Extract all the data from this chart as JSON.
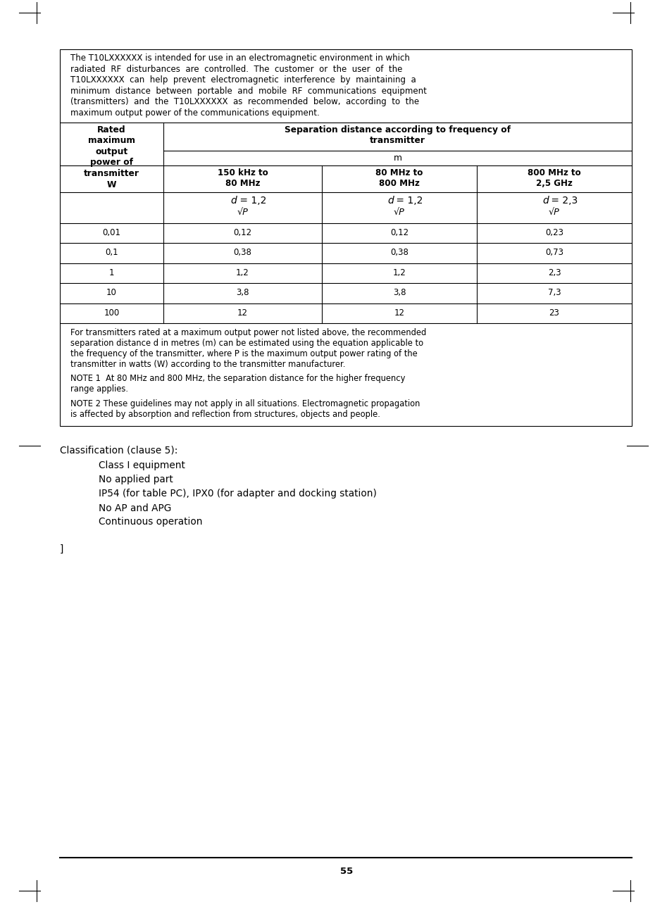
{
  "page_width": 9.47,
  "page_height": 13.08,
  "bg_color": "#ffffff",
  "page_number": "55",
  "intro_lines": [
    "The T10LXXXXXX is intended for use in an electromagnetic environment in which",
    "radiated  RF  disturbances  are  controlled.  The  customer  or  the  user  of  the",
    "T10LXXXXXX  can  help  prevent  electromagnetic  interference  by  maintaining  a",
    "minimum  distance  between  portable  and  mobile  RF  communications  equipment",
    "(transmitters)  and  the  T10LXXXXXX  as  recommended  below,  according  to  the",
    "maximum output power of the communications equipment."
  ],
  "col1_header_lines": [
    "Rated",
    "maximum",
    "output",
    "power of",
    "transmitter",
    "W"
  ],
  "sep_header_line1": "Separation distance according to frequency of",
  "sep_header_line2": "transmitter",
  "sep_header_line3": "m",
  "subcol_headers": [
    [
      "150 kHz to",
      "80 MHz"
    ],
    [
      "80 MHz to",
      "800 MHz"
    ],
    [
      "800 MHz to",
      "2,5 GHz"
    ]
  ],
  "formula_texts": [
    "= 1,2",
    "= 1,2",
    "= 2,3"
  ],
  "sqrt_char": "√P",
  "data_rows": [
    [
      "0,01",
      "0,12",
      "0,12",
      "0,23"
    ],
    [
      "0,1",
      "0,38",
      "0,38",
      "0,73"
    ],
    [
      "1",
      "1,2",
      "1,2",
      "2,3"
    ],
    [
      "10",
      "3,8",
      "3,8",
      "7,3"
    ],
    [
      "100",
      "12",
      "12",
      "23"
    ]
  ],
  "footer_lines1": [
    "For transmitters rated at a maximum output power not listed above, the recommended",
    "separation distance d in metres (m) can be estimated using the equation applicable to",
    "the frequency of the transmitter, where P is the maximum output power rating of the",
    "transmitter in watts (W) according to the transmitter manufacturer."
  ],
  "note1_lines": [
    "NOTE 1  At 80 MHz and 800 MHz, the separation distance for the higher frequency",
    "range applies."
  ],
  "note2_lines": [
    "NOTE 2 These guidelines may not apply in all situations. Electromagnetic propagation",
    "is affected by absorption and reflection from structures, objects and people."
  ],
  "classification_title": "Classification (clause 5):",
  "classification_items": [
    "Class I equipment",
    "No applied part",
    "IP54 (for table PC), IPX0 (for adapter and docking station)",
    "No AP and APG",
    "Continuous operation"
  ],
  "bracket_text": "]",
  "font_size_body": 8.5,
  "font_size_table": 8.5,
  "font_size_class": 9.8,
  "font_size_page_num": 9.5
}
